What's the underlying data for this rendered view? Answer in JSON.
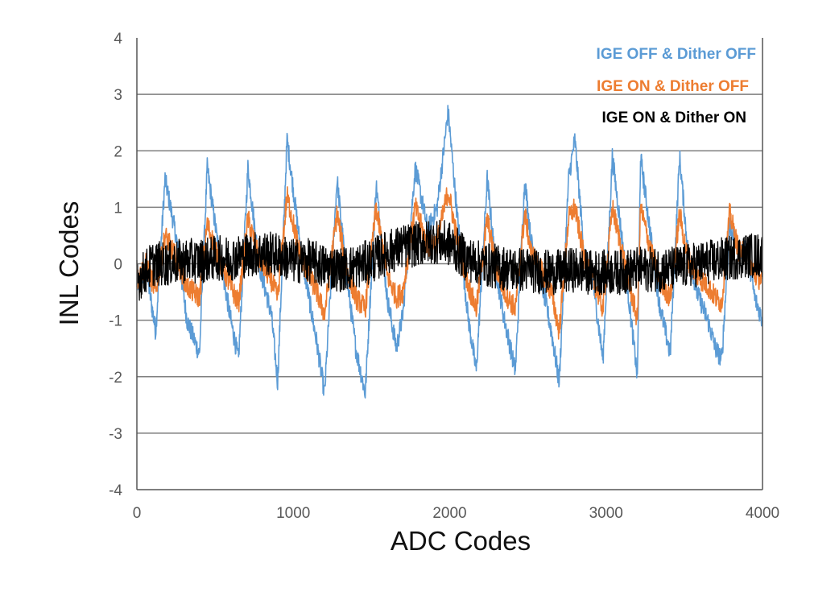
{
  "chart_data": {
    "type": "line",
    "xlabel": "ADC Codes",
    "ylabel": "INL Codes",
    "xlim": [
      0,
      4000
    ],
    "ylim": [
      -4,
      4
    ],
    "x_ticks": [
      "0",
      "1000",
      "2000",
      "3000",
      "4000"
    ],
    "y_ticks": [
      "4",
      "3",
      "2",
      "1",
      "0",
      "-1",
      "-2",
      "-3",
      "-4"
    ],
    "grid": "horizontal",
    "legend_position": "top-right",
    "series": [
      {
        "name": "IGE OFF & Dither OFF",
        "color": "#5b9bd5",
        "x": [
          0,
          60,
          120,
          180,
          250,
          320,
          400,
          450,
          520,
          600,
          650,
          710,
          780,
          860,
          900,
          960,
          1050,
          1150,
          1200,
          1280,
          1340,
          1400,
          1460,
          1530,
          1600,
          1660,
          1700,
          1780,
          1860,
          1920,
          1990,
          2050,
          2120,
          2170,
          2240,
          2300,
          2350,
          2420,
          2480,
          2520,
          2600,
          2650,
          2700,
          2760,
          2800,
          2860,
          2920,
          2980,
          3040,
          3120,
          3200,
          3220,
          3280,
          3340,
          3410,
          3470,
          3520,
          3580,
          3650,
          3700,
          3740,
          3790,
          3850,
          3900,
          3950,
          4000
        ],
        "y": [
          -0.4,
          -0.1,
          -1.2,
          1.5,
          0.5,
          -1.0,
          -1.6,
          1.7,
          0.3,
          -1.0,
          -1.7,
          1.7,
          0.0,
          -0.9,
          -2.1,
          2.2,
          0.2,
          -1.4,
          -2.3,
          1.5,
          -0.2,
          -1.5,
          -2.3,
          1.4,
          -0.6,
          -1.5,
          -0.9,
          1.7,
          0.6,
          1.0,
          2.7,
          0.8,
          -1.0,
          -1.9,
          1.5,
          -0.2,
          -1.0,
          -1.9,
          1.5,
          0.4,
          -0.5,
          -1.2,
          -2.1,
          1.5,
          2.2,
          0.2,
          -0.4,
          -1.7,
          1.9,
          0.0,
          -2.0,
          1.9,
          0.6,
          -0.7,
          -1.6,
          1.9,
          0.3,
          -0.5,
          -1.0,
          -1.5,
          -1.7,
          0.7,
          0.2,
          0.3,
          -0.6,
          -1.0
        ]
      },
      {
        "name": "IGE ON & Dither OFF",
        "color": "#ed7d31",
        "x": [
          0,
          60,
          120,
          180,
          250,
          320,
          400,
          450,
          520,
          600,
          650,
          710,
          780,
          860,
          900,
          960,
          1050,
          1150,
          1200,
          1280,
          1340,
          1400,
          1460,
          1530,
          1600,
          1660,
          1700,
          1780,
          1860,
          1920,
          1990,
          2050,
          2120,
          2170,
          2240,
          2300,
          2350,
          2420,
          2480,
          2520,
          2600,
          2650,
          2700,
          2760,
          2800,
          2860,
          2920,
          2980,
          3040,
          3120,
          3200,
          3220,
          3280,
          3340,
          3410,
          3470,
          3520,
          3580,
          3650,
          3700,
          3740,
          3790,
          3850,
          3900,
          3950,
          4000
        ],
        "y": [
          -0.3,
          0.0,
          -0.5,
          0.5,
          0.1,
          -0.4,
          -0.6,
          0.7,
          0.1,
          -0.4,
          -0.7,
          0.8,
          0.1,
          -0.3,
          -0.6,
          1.2,
          0.1,
          -0.5,
          -0.9,
          0.9,
          -0.1,
          -0.6,
          -0.8,
          1.0,
          -0.2,
          -0.6,
          -0.5,
          1.0,
          0.3,
          0.4,
          1.3,
          0.4,
          -0.4,
          -0.8,
          0.8,
          -0.1,
          -0.5,
          -0.8,
          0.9,
          0.2,
          -0.2,
          -0.5,
          -1.2,
          0.8,
          1.0,
          0.1,
          -0.3,
          -0.8,
          1.0,
          0.0,
          -1.0,
          1.0,
          0.3,
          -0.3,
          -0.6,
          0.9,
          0.1,
          -0.2,
          -0.4,
          -0.6,
          -0.7,
          0.9,
          0.2,
          0.2,
          -0.2,
          -0.3
        ]
      },
      {
        "name": "IGE ON & Dither ON",
        "color": "#000000",
        "x": [
          0,
          100,
          200,
          300,
          400,
          500,
          600,
          700,
          800,
          900,
          1000,
          1100,
          1200,
          1300,
          1400,
          1500,
          1600,
          1700,
          1800,
          1900,
          2000,
          2100,
          2200,
          2300,
          2400,
          2500,
          2600,
          2700,
          2800,
          2900,
          3000,
          3100,
          3200,
          3300,
          3400,
          3500,
          3600,
          3700,
          3800,
          3900,
          4000
        ],
        "y": [
          -0.3,
          0.0,
          0.0,
          0.05,
          0.05,
          0.1,
          0.1,
          0.15,
          0.2,
          0.15,
          0.05,
          0.05,
          -0.05,
          -0.1,
          -0.05,
          0.05,
          0.2,
          0.3,
          0.35,
          0.4,
          0.35,
          0.1,
          0.0,
          -0.05,
          -0.1,
          -0.1,
          -0.15,
          -0.15,
          -0.1,
          -0.15,
          -0.15,
          -0.15,
          -0.1,
          -0.1,
          -0.1,
          -0.05,
          0.0,
          0.05,
          0.1,
          0.15,
          0.15
        ],
        "noise_amplitude": 0.4
      }
    ]
  }
}
